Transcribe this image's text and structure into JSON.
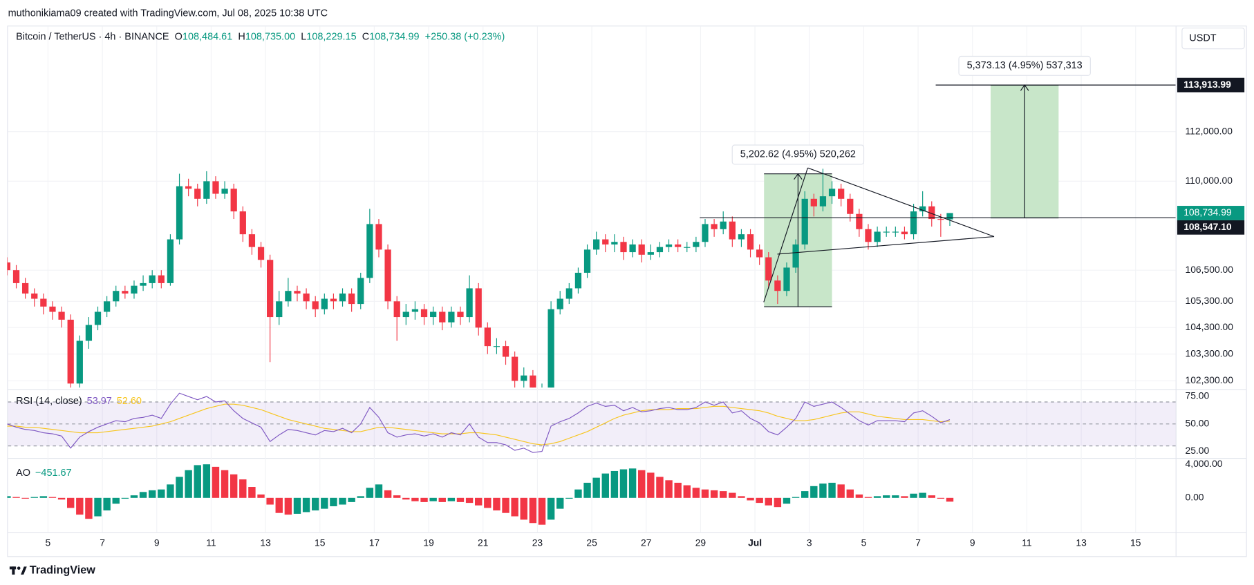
{
  "header": {
    "credit": "muthonikiama09 created with TradingView.com, Jul 08, 2025 10:38 UTC",
    "symbol": "Bitcoin / TetherUS · 4h · BINANCE",
    "ohlc": [
      {
        "key": "O",
        "text": "108,484.61"
      },
      {
        "key": "H",
        "text": "108,735.00"
      },
      {
        "key": "L",
        "text": "108,229.15"
      },
      {
        "key": "C",
        "text": "108,734.99"
      }
    ],
    "change": "+250.38 (+0.23%)",
    "currency": "USDT"
  },
  "chart_data": [
    {
      "type": "candlestick",
      "up_color": "#089981",
      "down_color": "#f23645",
      "log_scale": true,
      "grid": true,
      "xlim": [
        0,
        129
      ],
      "xticks": [
        {
          "value": 4.5,
          "label": "5"
        },
        {
          "value": 10.5,
          "label": "7"
        },
        {
          "value": 16.5,
          "label": "9"
        },
        {
          "value": 22.5,
          "label": "11"
        },
        {
          "value": 28.5,
          "label": "13"
        },
        {
          "value": 34.5,
          "label": "15"
        },
        {
          "value": 40.5,
          "label": "17"
        },
        {
          "value": 46.5,
          "label": "19"
        },
        {
          "value": 52.5,
          "label": "21"
        },
        {
          "value": 58.5,
          "label": "23"
        },
        {
          "value": 64.5,
          "label": "25"
        },
        {
          "value": 70.5,
          "label": "27"
        },
        {
          "value": 76.5,
          "label": "29"
        },
        {
          "value": 82.5,
          "label": "Jul"
        },
        {
          "value": 88.5,
          "label": "3"
        },
        {
          "value": 94.5,
          "label": "5"
        },
        {
          "value": 100.5,
          "label": "7"
        },
        {
          "value": 106.5,
          "label": "9"
        },
        {
          "value": 112.5,
          "label": "11"
        },
        {
          "value": 118.5,
          "label": "13"
        },
        {
          "value": 124.5,
          "label": "15"
        }
      ],
      "ylim": [
        102050,
        116300
      ],
      "yticks": [
        {
          "value": 112000,
          "label": "112,000.00"
        },
        {
          "value": 110000,
          "label": "110,000.00"
        },
        {
          "value": 106500,
          "label": "106,500.00"
        },
        {
          "value": 105300,
          "label": "105,300.00"
        },
        {
          "value": 104300,
          "label": "104,300.00"
        },
        {
          "value": 103300,
          "label": "103,300.00"
        },
        {
          "value": 102300,
          "label": "102,300.00"
        }
      ],
      "open": [
        106800,
        106500,
        106000,
        105600,
        105400,
        105100,
        104900,
        104600,
        102200,
        103800,
        104400,
        104900,
        105300,
        105700,
        105600,
        105900,
        106000,
        106300,
        106000,
        107700,
        109800,
        109700,
        109300,
        110000,
        109500,
        109700,
        108800,
        107900,
        107400,
        106900,
        104700,
        105300,
        105700,
        105600,
        105300,
        105000,
        105400,
        105300,
        105600,
        105200,
        106200,
        108300,
        107300,
        105300,
        104700,
        104900,
        105000,
        104700,
        104900,
        104500,
        104900,
        104700,
        105800,
        104300,
        103600,
        103600,
        103200,
        102300,
        102500,
        101800,
        101900,
        105000,
        105400,
        105800,
        106400,
        107300,
        107700,
        107500,
        107600,
        107200,
        107500,
        107100,
        107200,
        107400,
        107500,
        107400,
        107400,
        107600,
        108300,
        108100,
        108400,
        107700,
        107900,
        107300,
        107000,
        106100,
        105700,
        106600,
        107500,
        109300,
        109000,
        109400,
        109700,
        109300,
        108700,
        108100,
        107600,
        108000,
        108000,
        108000,
        107900,
        108800,
        109000,
        108500,
        108484.61
      ],
      "high": [
        107000,
        106700,
        106200,
        105800,
        105600,
        105300,
        105100,
        104800,
        104000,
        104700,
        105100,
        105500,
        105900,
        105900,
        106100,
        106300,
        106500,
        106500,
        107900,
        110300,
        110100,
        109900,
        110400,
        110200,
        110000,
        109900,
        109000,
        108100,
        107600,
        107100,
        105700,
        106200,
        105900,
        105800,
        105500,
        105600,
        105600,
        105800,
        105800,
        106400,
        108900,
        108500,
        107500,
        105500,
        105200,
        105300,
        105200,
        105100,
        105100,
        105100,
        105100,
        106300,
        106000,
        104500,
        103900,
        103800,
        103400,
        102800,
        102700,
        102200,
        105300,
        105700,
        106000,
        106600,
        107500,
        108000,
        107900,
        107900,
        107800,
        107700,
        107700,
        107500,
        107600,
        107700,
        107700,
        107600,
        107800,
        108500,
        108500,
        108800,
        108600,
        108100,
        108100,
        107500,
        107200,
        106300,
        106800,
        107700,
        109600,
        109500,
        110500,
        110000,
        109900,
        109500,
        108900,
        108300,
        108200,
        108200,
        108200,
        108200,
        109100,
        109600,
        109200,
        108700,
        108735
      ],
      "low": [
        106300,
        105800,
        105400,
        105100,
        104800,
        104600,
        104300,
        101400,
        101900,
        103500,
        104200,
        104700,
        105100,
        105400,
        105400,
        105700,
        105800,
        105800,
        105900,
        107500,
        109400,
        109000,
        109100,
        109300,
        109300,
        108500,
        107600,
        107100,
        106600,
        103000,
        104400,
        105100,
        105300,
        105000,
        104700,
        104800,
        105000,
        105100,
        104900,
        105000,
        106000,
        107000,
        105000,
        103800,
        104400,
        104600,
        104400,
        104400,
        104200,
        104300,
        104400,
        104500,
        104000,
        103300,
        103300,
        102900,
        102000,
        102000,
        101500,
        101000,
        101700,
        104800,
        105200,
        105600,
        106200,
        107100,
        107200,
        107200,
        106900,
        107000,
        106800,
        106900,
        107000,
        107200,
        107200,
        107200,
        107200,
        107400,
        107800,
        107900,
        107400,
        107400,
        107000,
        106700,
        105800,
        105200,
        105500,
        106400,
        107300,
        108600,
        108800,
        109100,
        109000,
        108400,
        107800,
        107300,
        107400,
        107800,
        107800,
        107700,
        107700,
        108600,
        108200,
        107800,
        108229.15
      ],
      "close": [
        106500,
        106000,
        105600,
        105400,
        105100,
        104900,
        104600,
        102200,
        103800,
        104400,
        104900,
        105300,
        105700,
        105600,
        105900,
        106000,
        106300,
        106000,
        107700,
        109800,
        109700,
        109300,
        110000,
        109500,
        109700,
        108800,
        107900,
        107400,
        106900,
        104700,
        105300,
        105700,
        105600,
        105300,
        105000,
        105400,
        105300,
        105600,
        105200,
        106200,
        108300,
        107300,
        105300,
        104700,
        104900,
        105000,
        104700,
        104900,
        104500,
        104900,
        104700,
        105800,
        104300,
        103600,
        103600,
        103200,
        102300,
        102500,
        101800,
        101900,
        105000,
        105400,
        105800,
        106400,
        107300,
        107700,
        107500,
        107600,
        107200,
        107500,
        107100,
        107200,
        107400,
        107500,
        107400,
        107400,
        107600,
        108300,
        108100,
        108400,
        107700,
        107900,
        107300,
        107000,
        106100,
        105700,
        106600,
        107500,
        109300,
        109000,
        109400,
        109700,
        109300,
        108700,
        108100,
        107600,
        108000,
        108000,
        108000,
        107900,
        108800,
        109000,
        108500,
        108484.61,
        108734.99
      ],
      "last_price_label": "108,734.99",
      "price_lines": [
        {
          "value": 108547.1,
          "label": "108,547.10"
        },
        {
          "value": 113913.99,
          "label": "113,913.99"
        }
      ],
      "measures": [
        {
          "label": "5,202.62 (4.95%) 520,262",
          "low": 105094,
          "high": 110296.62,
          "start": 83.5,
          "end": 91
        },
        {
          "label": "5,373.13 (4.95%) 537,313",
          "low": 108540.86,
          "high": 113913.99,
          "start": 108.5,
          "end": 116
        }
      ]
    },
    {
      "type": "rsi",
      "title": "RSI (14, close)",
      "ylim": [
        18,
        80
      ],
      "band": [
        30,
        70
      ],
      "dashed_levels": [
        70,
        50,
        30
      ],
      "band_color": "#7e57c2",
      "yticks": [
        {
          "value": 75,
          "label": "75.00"
        },
        {
          "value": 50,
          "label": "50.00"
        },
        {
          "value": 25,
          "label": "25.00"
        }
      ],
      "series": [
        {
          "color": "#7e57c2",
          "values": [
            50,
            47,
            45,
            44,
            42,
            41,
            39,
            28,
            38,
            43,
            47,
            50,
            53,
            52,
            55,
            56,
            58,
            55,
            68,
            78,
            75,
            72,
            75,
            70,
            71,
            62,
            55,
            51,
            47,
            34,
            40,
            45,
            44,
            42,
            40,
            44,
            43,
            46,
            42,
            50,
            65,
            56,
            42,
            38,
            40,
            41,
            39,
            41,
            38,
            42,
            40,
            50,
            38,
            33,
            33,
            31,
            26,
            28,
            24,
            25,
            48,
            52,
            55,
            60,
            66,
            69,
            66,
            67,
            62,
            65,
            61,
            62,
            64,
            65,
            63,
            63,
            65,
            70,
            67,
            70,
            60,
            62,
            55,
            51,
            43,
            40,
            47,
            55,
            70,
            66,
            68,
            70,
            65,
            59,
            53,
            49,
            53,
            53,
            53,
            52,
            60,
            62,
            57,
            51,
            53.97
          ]
        },
        {
          "color": "#f7c51e",
          "current_label": "52.60",
          "values": [
            48,
            48,
            47,
            47,
            46,
            45,
            44,
            43,
            42,
            42,
            42,
            43,
            44,
            45,
            46,
            47,
            48,
            50,
            52,
            55,
            58,
            61,
            64,
            66,
            68,
            68,
            67,
            65,
            63,
            60,
            57,
            54,
            52,
            50,
            48,
            46,
            45,
            44,
            43,
            43,
            45,
            47,
            47,
            46,
            45,
            44,
            43,
            42,
            41,
            41,
            41,
            42,
            42,
            41,
            40,
            38,
            36,
            34,
            32,
            31,
            32,
            34,
            37,
            40,
            43,
            47,
            51,
            55,
            58,
            60,
            62,
            63,
            63,
            63,
            64,
            64,
            64,
            65,
            66,
            66,
            65,
            64,
            63,
            62,
            60,
            57,
            55,
            53,
            53,
            54,
            56,
            58,
            60,
            61,
            61,
            59,
            57,
            56,
            55,
            54,
            54,
            54,
            53,
            52,
            52.6
          ]
        }
      ]
    },
    {
      "type": "ao",
      "title": "AO",
      "current_label": "−451.67",
      "up_color": "#089981",
      "down_color": "#f23645",
      "ylim": [
        -4000,
        4500
      ],
      "yticks": [
        {
          "value": 4000,
          "label": "4,000.00"
        },
        {
          "value": 0,
          "label": "0.00"
        }
      ],
      "values": [
        200,
        100,
        0,
        100,
        200,
        100,
        -200,
        -1200,
        -2000,
        -2500,
        -2200,
        -1500,
        -700,
        -100,
        300,
        700,
        900,
        1000,
        1600,
        2500,
        3300,
        3900,
        4000,
        3700,
        3300,
        2800,
        2200,
        1300,
        400,
        -800,
        -1800,
        -2000,
        -1900,
        -1700,
        -1500,
        -1300,
        -1000,
        -800,
        -500,
        200,
        1200,
        1600,
        900,
        300,
        -200,
        -400,
        -500,
        -400,
        -500,
        -400,
        -500,
        -600,
        -900,
        -1200,
        -1500,
        -1800,
        -2200,
        -2600,
        -3000,
        -3200,
        -2600,
        -1300,
        -100,
        1000,
        1800,
        2400,
        2900,
        3200,
        3400,
        3500,
        3300,
        3000,
        2500,
        2100,
        1800,
        1500,
        1200,
        1000,
        900,
        800,
        600,
        200,
        -300,
        -600,
        -900,
        -1100,
        -700,
        100,
        800,
        1400,
        1700,
        1800,
        1600,
        1000,
        400,
        100,
        200,
        300,
        300,
        200,
        500,
        600,
        300,
        -100,
        -451.67
      ]
    }
  ],
  "footer": {
    "brand": "TradingView"
  }
}
